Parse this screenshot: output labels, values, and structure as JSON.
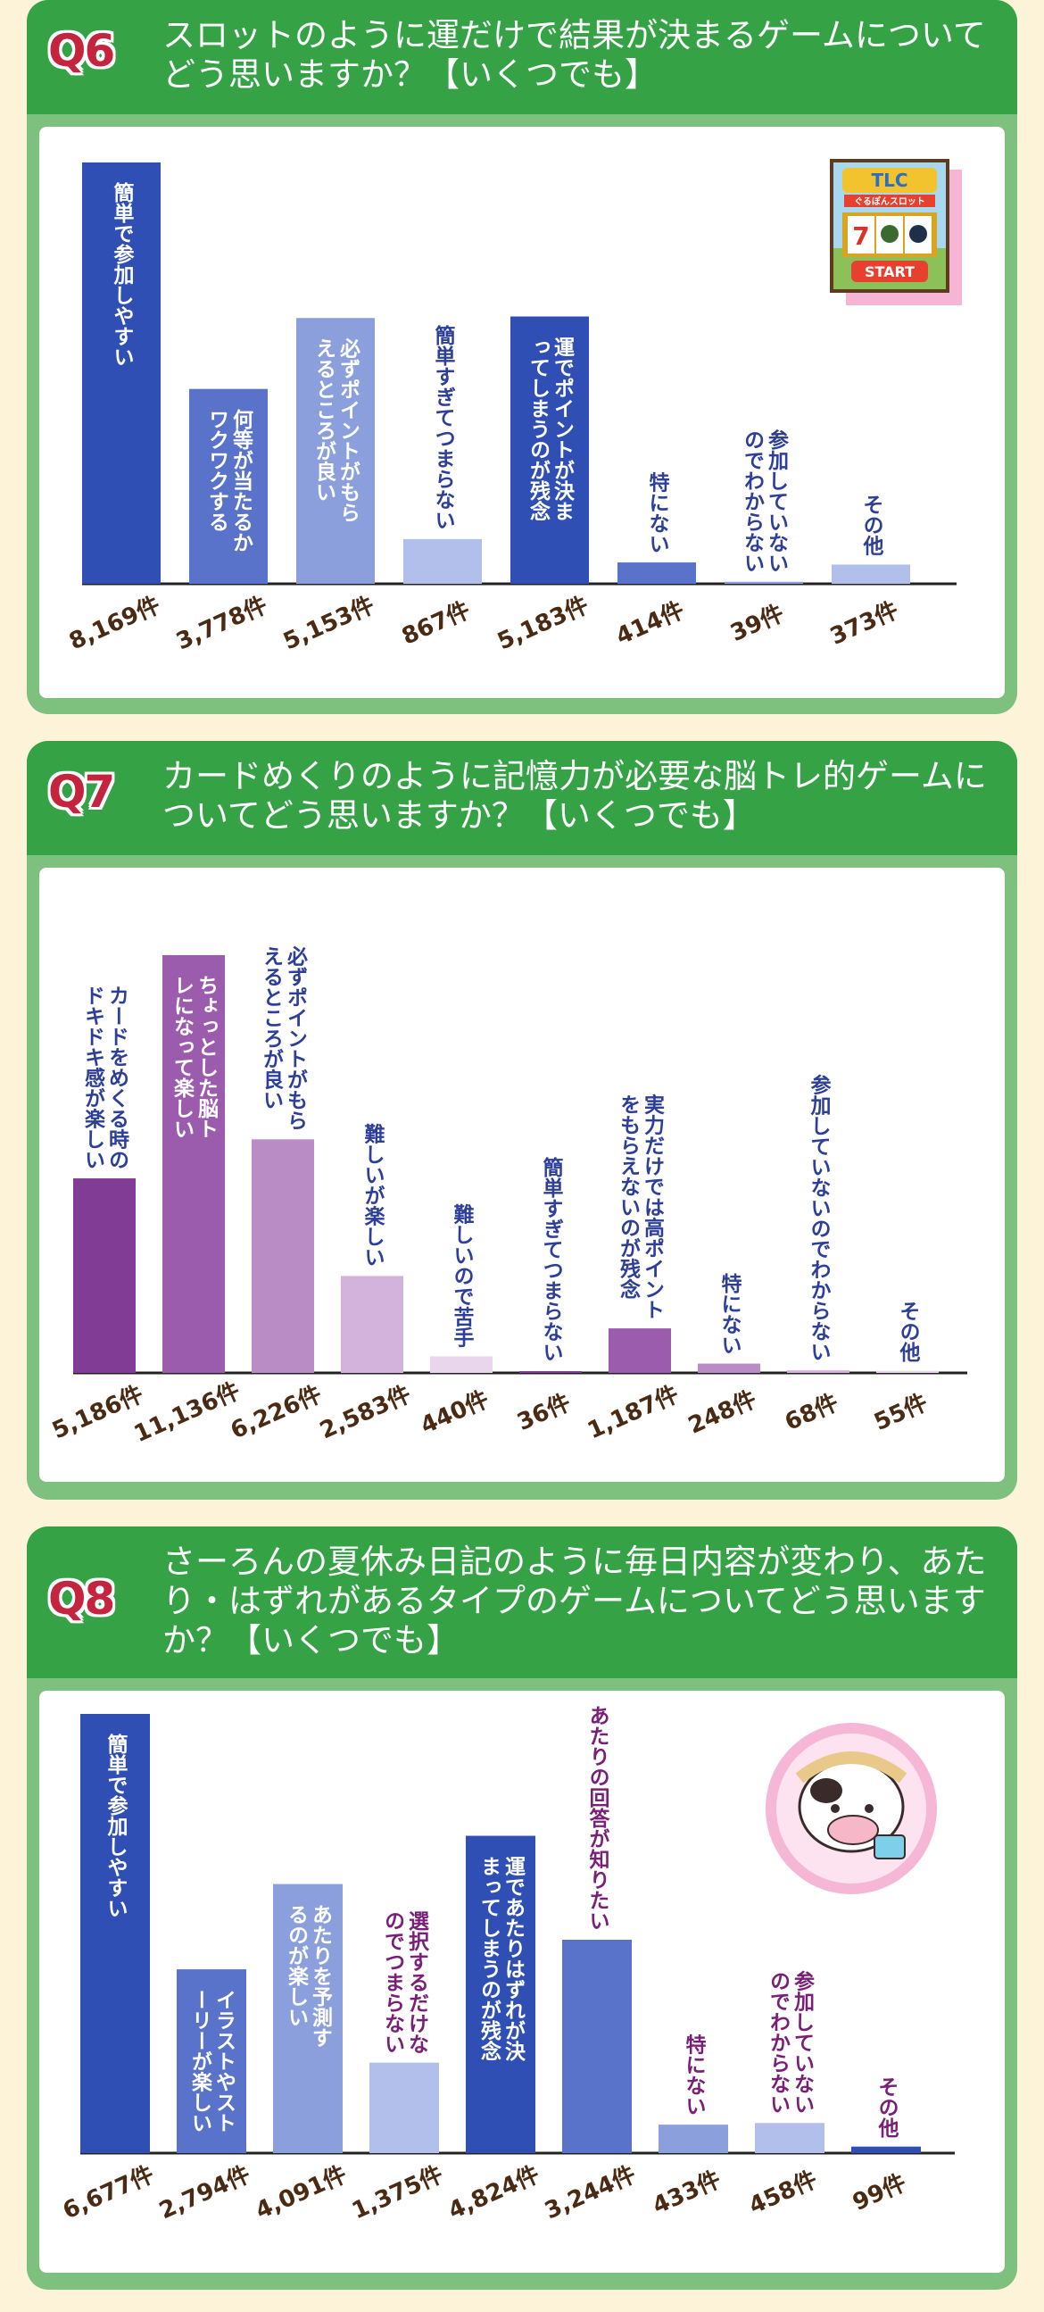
{
  "chart_data": [
    {
      "type": "bar",
      "badge": "Q6",
      "title": "スロットのように運だけで結果が決まるゲームについてどう思いますか？【いくつでも】",
      "categories": [
        "簡単で参加しやすい",
        "何等が当たるかワクワクする",
        "必ずポイントがもらえるところが良い",
        "簡単すぎてつまらない",
        "運でポイントが決まってしまうのが残念",
        "特にない",
        "参加していないのでわからない",
        "その他"
      ],
      "values": [
        8169,
        3778,
        5153,
        867,
        5183,
        414,
        39,
        373
      ],
      "value_labels": [
        "8,169件",
        "3,778件",
        "5,153件",
        "867件",
        "5,183件",
        "414件",
        "39件",
        "373件"
      ],
      "colors": [
        "#2f4fb4",
        "#5873c9",
        "#8c9fdd",
        "#b2bfea",
        "#2f4fb4",
        "#5873c9",
        "#8c9fdd",
        "#b2bfea"
      ],
      "label_color": "#ffffff",
      "text_color": "#2d3f99"
    },
    {
      "type": "bar",
      "badge": "Q7",
      "title": "カードめくりのように記憶力が必要な脳トレ的ゲームについてどう思いますか？【いくつでも】",
      "categories": [
        "カードをめくる時のドキドキ感が楽しい",
        "ちょっとした脳トレになって楽しい",
        "必ずポイントがもらえるところが良い",
        "難しいが楽しい",
        "難しいので苦手",
        "簡単すぎてつまらない",
        "実力だけでは高ポイントをもらえないのが残念",
        "特にない",
        "参加していないのでわからない",
        "その他"
      ],
      "values": [
        5186,
        11136,
        6226,
        2583,
        440,
        36,
        1187,
        248,
        68,
        55
      ],
      "value_labels": [
        "5,186件",
        "11,136件",
        "6,226件",
        "2,583件",
        "440件",
        "36件",
        "1,187件",
        "248件",
        "68件",
        "55件"
      ],
      "colors": [
        "#813d95",
        "#9c5cae",
        "#b98cc5",
        "#d3b2dc",
        "#e9d6ec",
        "#813d95",
        "#9c5cae",
        "#b98cc5",
        "#d3b2dc",
        "#e9d6ec"
      ],
      "text_color": "#2d3f99"
    },
    {
      "type": "bar",
      "badge": "Q8",
      "title": "さーろんの夏休み日記のように毎日内容が変わり、あたり・はずれがあるタイプのゲームについてどう思いますか？【いくつでも】",
      "categories": [
        "簡単で参加しやすい",
        "イラストやストーリーが楽しい",
        "あたりを予測するのが楽しい",
        "選択するだけなのでつまらない",
        "運であたりはずれが決まってしまうのが残念",
        "あたりの回答が知りたい",
        "特にない",
        "参加していないのでわからない",
        "その他"
      ],
      "values": [
        6677,
        2794,
        4091,
        1375,
        4824,
        3244,
        433,
        458,
        99
      ],
      "value_labels": [
        "6,677件",
        "2,794件",
        "4,091件",
        "1,375件",
        "4,824件",
        "3,244件",
        "433件",
        "458件",
        "99件"
      ],
      "colors": [
        "#2f4fb4",
        "#5873c9",
        "#8c9fdd",
        "#b2bfea",
        "#2f4fb4",
        "#5873c9",
        "#8c9fdd",
        "#b2bfea",
        "#2f4fb4"
      ],
      "text_color": "#7a1f78"
    }
  ],
  "illustrations": {
    "slot": {
      "brand": "TLC",
      "subtitle": "ぐるぽんスロット",
      "button": "START",
      "reels": "7"
    }
  }
}
